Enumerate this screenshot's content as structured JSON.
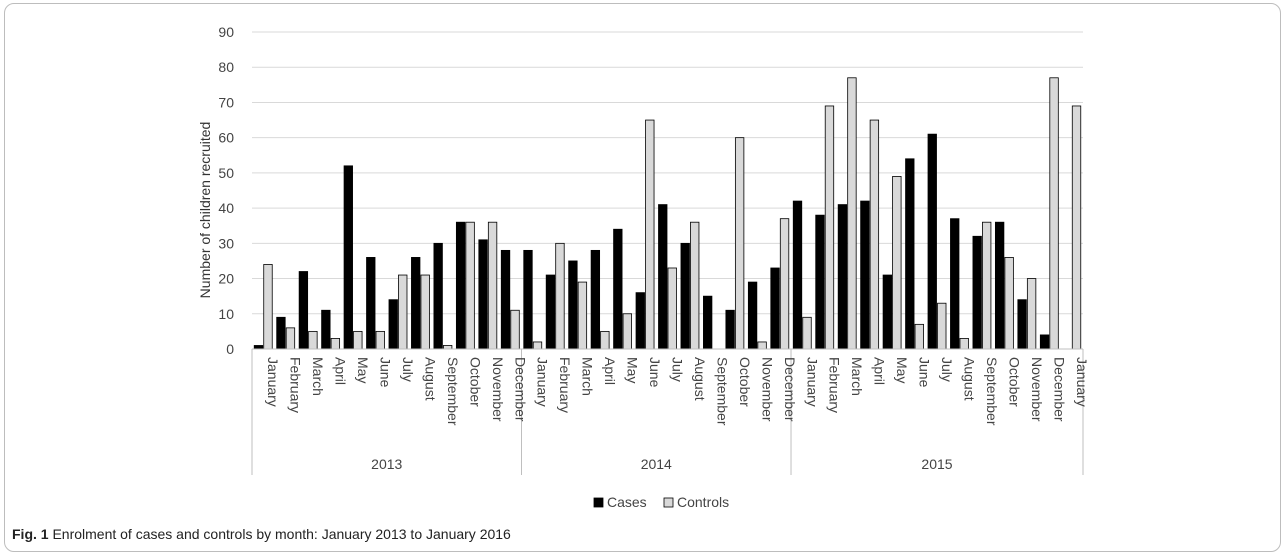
{
  "chart_data": {
    "type": "bar",
    "ylabel": "Number of children recruited",
    "ylim": [
      0,
      90
    ],
    "yticks": [
      0,
      10,
      20,
      30,
      40,
      50,
      60,
      70,
      80,
      90
    ],
    "grid": true,
    "legend_position": "bottom",
    "categories": [
      "January",
      "February",
      "March",
      "April",
      "May",
      "June",
      "July",
      "August",
      "September",
      "October",
      "November",
      "December",
      "January",
      "February",
      "March",
      "April",
      "May",
      "June",
      "July",
      "August",
      "September",
      "October",
      "November",
      "December",
      "January",
      "February",
      "March",
      "April",
      "May",
      "June",
      "July",
      "August",
      "September",
      "October",
      "November",
      "December",
      "January"
    ],
    "groups": [
      {
        "label": "2013",
        "count": 12
      },
      {
        "label": "2014",
        "count": 12
      },
      {
        "label": "2015",
        "count": 13
      }
    ],
    "series": [
      {
        "name": "Cases",
        "color": "#000000",
        "values": [
          1,
          9,
          22,
          11,
          52,
          26,
          14,
          26,
          30,
          36,
          31,
          28,
          28,
          21,
          25,
          28,
          34,
          16,
          41,
          30,
          15,
          11,
          19,
          23,
          42,
          38,
          41,
          42,
          21,
          54,
          61,
          37,
          32,
          36,
          14,
          4,
          0
        ]
      },
      {
        "name": "Controls",
        "color": "#d9d9d9",
        "values": [
          24,
          6,
          5,
          3,
          5,
          5,
          21,
          21,
          1,
          36,
          36,
          11,
          2,
          30,
          19,
          5,
          10,
          65,
          23,
          36,
          0,
          60,
          2,
          37,
          9,
          69,
          77,
          65,
          49,
          7,
          13,
          3,
          36,
          26,
          20,
          77,
          69
        ]
      }
    ]
  },
  "caption": {
    "label": "Fig. 1",
    "text": "Enrolment of cases and controls by month: January 2013 to January 2016"
  }
}
